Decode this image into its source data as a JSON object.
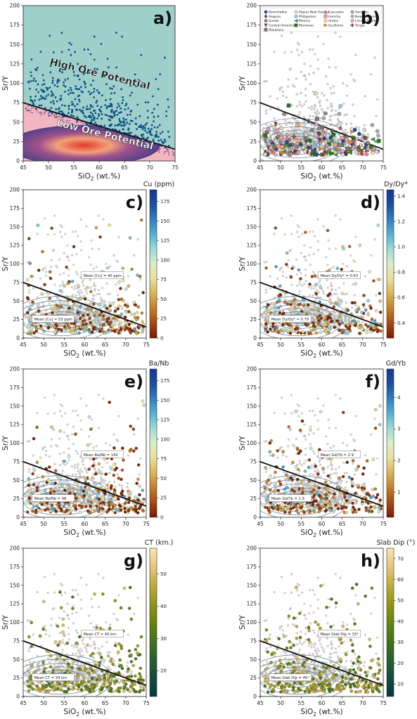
{
  "figure": {
    "panels": [
      {
        "id": "a",
        "letter": "a)",
        "xlabel_main": "SiO",
        "xlabel_sub": "2",
        "xlabel_tail": " (wt.%)",
        "ylabel": "Sr/Y",
        "xticks": [
          "45",
          "50",
          "55",
          "60",
          "65",
          "70",
          "75"
        ],
        "yticks": [
          "0",
          "25",
          "50",
          "75",
          "100",
          "125",
          "150",
          "175",
          "200"
        ],
        "annotations": [
          "High Ore Potential",
          "Low Ore Potential"
        ],
        "colors": {
          "high_region": "#9fcfcb",
          "low_region": "#f3b6c0",
          "points": "#0b5584",
          "density_core": "#e0462f",
          "density_edge": "#4a3b86"
        }
      },
      {
        "id": "b",
        "letter": "b)",
        "xlabel_main": "SiO",
        "xlabel_sub": "2",
        "xlabel_tail": " (wt.%)",
        "ylabel": "Sr/Y",
        "xticks": [
          "45",
          "50",
          "55",
          "60",
          "65",
          "70",
          "75"
        ],
        "yticks": [
          "0",
          "25",
          "50",
          "75",
          "100",
          "125",
          "150",
          "175",
          "200"
        ],
        "legend": [
          {
            "label": "Kamchatka",
            "color": "#1f4e8c"
          },
          {
            "label": "Aegean",
            "color": "#555555"
          },
          {
            "label": "Sunda",
            "color": "#888888"
          },
          {
            "label": "Central America",
            "color": "#7a3b3b"
          },
          {
            "label": "Aleutians",
            "color": "#777777"
          },
          {
            "label": "Papua New Guinea",
            "color": "#dddddd"
          },
          {
            "label": "Philippines",
            "color": "#9ecae1"
          },
          {
            "label": "Mexico",
            "color": "#2ca02c"
          },
          {
            "label": "Marianas",
            "color": "#1a7a1a"
          },
          {
            "label": "Cascades",
            "color": "#f08080"
          },
          {
            "label": "Honshu",
            "color": "#f4a582"
          },
          {
            "label": "Andes",
            "color": "#f7d4a8"
          },
          {
            "label": "Izu-Bonin",
            "color": "#ff8c1a"
          },
          {
            "label": "Vanuatu",
            "color": "#aaaaaa"
          },
          {
            "label": "New Zealand",
            "color": "#c9a3c9"
          },
          {
            "label": "Lesser Antilles",
            "color": "#f5a0b5"
          },
          {
            "label": "Tonga",
            "color": "#b22222"
          }
        ]
      },
      {
        "id": "c",
        "letter": "c)",
        "xlabel_main": "SiO",
        "xlabel_sub": "2",
        "xlabel_tail": " (wt.%)",
        "ylabel": "Sr/Y",
        "xticks": [
          "45",
          "50",
          "55",
          "60",
          "65",
          "70",
          "75"
        ],
        "yticks": [
          "0",
          "25",
          "50",
          "75",
          "100",
          "125",
          "150",
          "175",
          "200"
        ],
        "colorbar_title": "Cu (ppm)",
        "colorbar_ticks": [
          "0",
          "25",
          "50",
          "75",
          "100",
          "125",
          "150",
          "175"
        ],
        "colorbar_range": [
          0,
          190
        ],
        "colormap": "roma",
        "box_upper": "Mean [Cu] = 40 ppm",
        "box_lower": "Mean [Cu] = 53 ppm"
      },
      {
        "id": "d",
        "letter": "d)",
        "xlabel_main": "SiO",
        "xlabel_sub": "2",
        "xlabel_tail": " (wt.%)",
        "ylabel": "Sr/Y",
        "xticks": [
          "45",
          "50",
          "55",
          "60",
          "65",
          "70",
          "75"
        ],
        "yticks": [
          "0",
          "25",
          "50",
          "75",
          "100",
          "125",
          "150",
          "175",
          "200"
        ],
        "colorbar_title": "Dy/Dy*",
        "colorbar_ticks": [
          "0.4",
          "0.6",
          "0.8",
          "1.0",
          "1.2",
          "1.4"
        ],
        "colorbar_range": [
          0.28,
          1.45
        ],
        "colormap": "roma",
        "box_upper": "Mean Dy/Dy* = 0.63",
        "box_lower": "Mean Dy/Dy* = 0.79"
      },
      {
        "id": "e",
        "letter": "e)",
        "xlabel_main": "SiO",
        "xlabel_sub": "2",
        "xlabel_tail": " (wt.%)",
        "ylabel": "Sr/Y",
        "xticks": [
          "45",
          "50",
          "55",
          "60",
          "65",
          "70",
          "75"
        ],
        "yticks": [
          "0",
          "25",
          "50",
          "75",
          "100",
          "125",
          "150",
          "175",
          "200"
        ],
        "colorbar_title": "Ba/Nb",
        "colorbar_ticks": [
          "0",
          "25",
          "50",
          "75",
          "100",
          "125",
          "150",
          "175"
        ],
        "colorbar_range": [
          0,
          190
        ],
        "colormap": "roma",
        "box_upper": "Mean Ba/Nb = 143",
        "box_lower": "Mean Ba/Nb = 98"
      },
      {
        "id": "f",
        "letter": "f)",
        "xlabel_main": "SiO",
        "xlabel_sub": "2",
        "xlabel_tail": " (wt.%)",
        "ylabel": "Sr/Y",
        "xticks": [
          "45",
          "50",
          "55",
          "60",
          "65",
          "70",
          "75"
        ],
        "yticks": [
          "0",
          "25",
          "50",
          "75",
          "100",
          "125",
          "150",
          "175",
          "200"
        ],
        "colorbar_title": "Gd/Yb",
        "colorbar_ticks": [
          "1",
          "2",
          "3",
          "4"
        ],
        "colorbar_range": [
          0.2,
          4.9
        ],
        "colormap": "roma",
        "box_upper": "Mean Gd/Yb = 2.9",
        "box_lower": "Mean Gd/Yb = 1.9"
      },
      {
        "id": "g",
        "letter": "g)",
        "xlabel_main": "SiO",
        "xlabel_sub": "2",
        "xlabel_tail": " (wt.%)",
        "ylabel": "Sr/Y",
        "xticks": [
          "45",
          "50",
          "55",
          "60",
          "65",
          "70",
          "75"
        ],
        "yticks": [
          "0",
          "25",
          "50",
          "75",
          "100",
          "125",
          "150",
          "175",
          "200"
        ],
        "colorbar_title": "CT (km.)",
        "colorbar_ticks": [
          "20",
          "30",
          "40",
          "50"
        ],
        "colorbar_range": [
          12,
          58
        ],
        "colormap": "bamako",
        "box_upper": "Mean CT = 40 km.",
        "box_lower": "Mean CT = 34 km."
      },
      {
        "id": "h",
        "letter": "h)",
        "xlabel_main": "SiO",
        "xlabel_sub": "2",
        "xlabel_tail": " (wt.%)",
        "ylabel": "Sr/Y",
        "xticks": [
          "45",
          "50",
          "55",
          "60",
          "65",
          "70",
          "75"
        ],
        "yticks": [
          "0",
          "25",
          "50",
          "75",
          "100",
          "125",
          "150",
          "175",
          "200"
        ],
        "colorbar_title": "Slab Dip (°)",
        "colorbar_ticks": [
          "10",
          "20",
          "30",
          "40",
          "50",
          "60",
          "70"
        ],
        "colorbar_range": [
          4,
          75
        ],
        "colormap": "bamako",
        "box_upper": "Mean Slab Dip = 33°",
        "box_lower": "Mean Slab Dip = 40°"
      }
    ]
  },
  "chart_data": [
    {
      "panel": "a",
      "type": "scatter",
      "xlim": [
        45,
        75
      ],
      "ylim": [
        0,
        200
      ],
      "boundary_line": {
        "x": [
          45,
          75
        ],
        "y": [
          75,
          15
        ]
      }
    },
    {
      "panel": "b",
      "type": "scatter",
      "xlim": [
        45,
        75
      ],
      "ylim": [
        0,
        200
      ],
      "boundary_line": {
        "x": [
          45,
          75
        ],
        "y": [
          75,
          15
        ]
      },
      "series_names": "see legend"
    },
    {
      "panel": "c",
      "type": "scatter",
      "xlim": [
        45,
        75
      ],
      "ylim": [
        0,
        200
      ],
      "color_variable": "Cu (ppm)",
      "color_range": [
        0,
        190
      ],
      "boundary_line": {
        "x": [
          45,
          75
        ],
        "y": [
          75,
          15
        ]
      },
      "mean_upper": 40,
      "mean_lower": 53
    },
    {
      "panel": "d",
      "type": "scatter",
      "xlim": [
        45,
        75
      ],
      "ylim": [
        0,
        200
      ],
      "color_variable": "Dy/Dy*",
      "color_range": [
        0.28,
        1.45
      ],
      "boundary_line": {
        "x": [
          45,
          75
        ],
        "y": [
          75,
          15
        ]
      },
      "mean_upper": 0.63,
      "mean_lower": 0.79
    },
    {
      "panel": "e",
      "type": "scatter",
      "xlim": [
        45,
        75
      ],
      "ylim": [
        0,
        200
      ],
      "color_variable": "Ba/Nb",
      "color_range": [
        0,
        190
      ],
      "boundary_line": {
        "x": [
          45,
          75
        ],
        "y": [
          75,
          15
        ]
      },
      "mean_upper": 143,
      "mean_lower": 98
    },
    {
      "panel": "f",
      "type": "scatter",
      "xlim": [
        45,
        75
      ],
      "ylim": [
        0,
        200
      ],
      "color_variable": "Gd/Yb",
      "color_range": [
        0.2,
        4.9
      ],
      "boundary_line": {
        "x": [
          45,
          75
        ],
        "y": [
          75,
          15
        ]
      },
      "mean_upper": 2.9,
      "mean_lower": 1.9
    },
    {
      "panel": "g",
      "type": "scatter",
      "xlim": [
        45,
        75
      ],
      "ylim": [
        0,
        200
      ],
      "color_variable": "CT (km.)",
      "color_range": [
        12,
        58
      ],
      "boundary_line": {
        "x": [
          45,
          75
        ],
        "y": [
          75,
          15
        ]
      },
      "mean_upper": 40,
      "mean_lower": 34
    },
    {
      "panel": "h",
      "type": "scatter",
      "xlim": [
        45,
        75
      ],
      "ylim": [
        0,
        200
      ],
      "color_variable": "Slab Dip (°)",
      "color_range": [
        4,
        75
      ],
      "boundary_line": {
        "x": [
          45,
          75
        ],
        "y": [
          75,
          15
        ]
      },
      "mean_upper": 33,
      "mean_lower": 40
    }
  ]
}
